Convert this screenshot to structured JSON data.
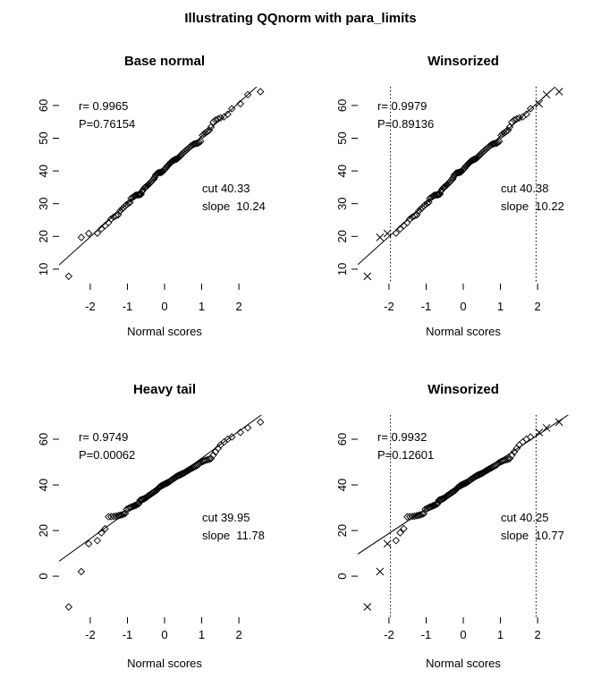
{
  "main_title": "Illustrating QQnorm with para_limits",
  "colors": {
    "foreground": "#000000",
    "background": "#ffffff"
  },
  "chart_data": {
    "type": "scatter",
    "title": "Illustrating QQnorm with para_limits",
    "xlabel": "Normal scores",
    "ylabel": "",
    "grid": false,
    "legend": "none",
    "xticks": [
      -2,
      -1,
      0,
      1,
      2
    ],
    "marker": "open-diamond",
    "winsorized_marker": "x-cross",
    "datasets": {
      "normal": {
        "x": [
          -2.58,
          -2.24,
          -2.04,
          -1.81,
          -1.7,
          -1.6,
          -1.51,
          -1.44,
          -1.37,
          -1.31,
          -1.25,
          -1.2,
          -1.15,
          -1.1,
          -1.06,
          -1.02,
          -0.97,
          -0.93,
          -0.9,
          -0.86,
          -0.82,
          -0.79,
          -0.76,
          -0.72,
          -0.69,
          -0.66,
          -0.63,
          -0.6,
          -0.57,
          -0.54,
          -0.51,
          -0.48,
          -0.45,
          -0.43,
          -0.4,
          -0.37,
          -0.35,
          -0.32,
          -0.29,
          -0.27,
          -0.24,
          -0.21,
          -0.19,
          -0.16,
          -0.14,
          -0.11,
          -0.09,
          -0.06,
          -0.04,
          -0.01,
          0.01,
          0.04,
          0.06,
          0.09,
          0.11,
          0.14,
          0.16,
          0.19,
          0.21,
          0.24,
          0.27,
          0.29,
          0.32,
          0.35,
          0.37,
          0.4,
          0.43,
          0.45,
          0.48,
          0.51,
          0.54,
          0.57,
          0.6,
          0.63,
          0.66,
          0.69,
          0.72,
          0.76,
          0.79,
          0.82,
          0.86,
          0.9,
          0.93,
          0.97,
          1.02,
          1.06,
          1.1,
          1.15,
          1.2,
          1.25,
          1.31,
          1.37,
          1.44,
          1.51,
          1.6,
          1.7,
          1.81,
          2.04,
          2.24,
          2.58
        ],
        "y": [
          7.8,
          19.7,
          20.9,
          21.0,
          22.3,
          23.3,
          24.2,
          25.3,
          25.9,
          26.3,
          26.6,
          27.7,
          28.3,
          28.8,
          29.3,
          29.7,
          30.1,
          30.4,
          31.6,
          31.9,
          32.2,
          32.5,
          32.6,
          32.7,
          32.7,
          32.8,
          32.9,
          33.8,
          34.3,
          34.8,
          35.1,
          35.3,
          35.6,
          35.9,
          36.2,
          36.5,
          36.8,
          37.2,
          37.5,
          38.0,
          38.7,
          39.1,
          39.3,
          39.4,
          39.5,
          39.5,
          39.6,
          39.7,
          39.9,
          40.3,
          40.6,
          40.9,
          41.3,
          41.6,
          41.9,
          42.2,
          42.5,
          42.8,
          43.0,
          43.2,
          43.4,
          43.5,
          43.6,
          43.8,
          44.0,
          44.3,
          44.6,
          45.0,
          45.3,
          45.6,
          45.9,
          46.2,
          46.5,
          46.8,
          47.1,
          47.4,
          47.7,
          48.0,
          48.2,
          48.3,
          48.4,
          48.5,
          48.7,
          49.0,
          50.9,
          51.3,
          51.6,
          52.0,
          52.4,
          53.4,
          54.9,
          55.5,
          55.9,
          56.2,
          56.5,
          57.3,
          59.0,
          60.5,
          63.3,
          64.2
        ]
      },
      "heavy": {
        "x": [
          -2.58,
          -2.24,
          -2.04,
          -1.81,
          -1.7,
          -1.6,
          -1.51,
          -1.44,
          -1.37,
          -1.31,
          -1.25,
          -1.2,
          -1.15,
          -1.1,
          -1.06,
          -1.02,
          -0.97,
          -0.93,
          -0.9,
          -0.86,
          -0.82,
          -0.79,
          -0.76,
          -0.72,
          -0.69,
          -0.66,
          -0.63,
          -0.6,
          -0.57,
          -0.54,
          -0.51,
          -0.48,
          -0.45,
          -0.43,
          -0.4,
          -0.37,
          -0.35,
          -0.32,
          -0.29,
          -0.27,
          -0.24,
          -0.21,
          -0.19,
          -0.16,
          -0.14,
          -0.11,
          -0.09,
          -0.06,
          -0.04,
          -0.01,
          0.01,
          0.04,
          0.06,
          0.09,
          0.11,
          0.14,
          0.16,
          0.19,
          0.21,
          0.24,
          0.27,
          0.29,
          0.32,
          0.35,
          0.37,
          0.4,
          0.43,
          0.45,
          0.48,
          0.51,
          0.54,
          0.57,
          0.6,
          0.63,
          0.66,
          0.69,
          0.72,
          0.76,
          0.79,
          0.82,
          0.86,
          0.9,
          0.93,
          0.97,
          1.02,
          1.06,
          1.1,
          1.15,
          1.2,
          1.25,
          1.31,
          1.37,
          1.44,
          1.51,
          1.6,
          1.7,
          1.81,
          2.04,
          2.24,
          2.58
        ],
        "y": [
          -13.5,
          2.0,
          14.2,
          15.6,
          19.0,
          20.8,
          26.0,
          26.1,
          26.2,
          26.3,
          26.5,
          26.7,
          26.9,
          27.2,
          27.5,
          29.3,
          29.7,
          30.0,
          30.3,
          30.5,
          30.8,
          31.0,
          31.2,
          31.5,
          31.8,
          33.2,
          33.4,
          33.6,
          33.8,
          34.0,
          34.3,
          34.6,
          35.0,
          35.3,
          35.6,
          35.9,
          36.2,
          36.5,
          36.8,
          37.1,
          37.4,
          37.7,
          38.1,
          38.6,
          39.0,
          39.3,
          39.6,
          39.8,
          40.0,
          40.2,
          40.4,
          40.6,
          40.8,
          41.0,
          41.2,
          41.5,
          41.8,
          42.1,
          42.4,
          42.7,
          43.0,
          43.3,
          43.6,
          43.9,
          44.1,
          44.3,
          44.5,
          44.7,
          44.9,
          45.1,
          45.4,
          45.7,
          46.0,
          46.3,
          46.6,
          46.9,
          47.2,
          47.5,
          47.8,
          48.1,
          48.4,
          48.8,
          49.3,
          49.8,
          50.2,
          50.5,
          50.8,
          51.0,
          51.2,
          51.5,
          53.0,
          54.5,
          56.0,
          57.5,
          58.8,
          60.0,
          61.0,
          63.0,
          65.0,
          67.5
        ]
      }
    },
    "panels": [
      {
        "id": "base-normal",
        "title": "Base normal",
        "dataset": "normal",
        "r_text": "r= 0.9965",
        "p_text": "P=0.76154",
        "cut_text": "cut 40.33",
        "slope_text": "slope  10.24",
        "line": {
          "intercept": 40.33,
          "slope": 10.24
        },
        "xlim": [
          -2.84,
          2.84
        ],
        "ylim": [
          5.6,
          65.7
        ],
        "yticks": [
          10,
          20,
          30,
          40,
          50,
          60
        ],
        "vlines": [],
        "cross_indices": []
      },
      {
        "id": "winsorized-normal",
        "title": "Winsorized",
        "dataset": "normal",
        "r_text": "r= 0.9979",
        "p_text": "P=0.89136",
        "cut_text": "cut 40.38",
        "slope_text": "slope  10.22",
        "line": {
          "intercept": 40.38,
          "slope": 10.22
        },
        "xlim": [
          -2.84,
          2.84
        ],
        "ylim": [
          5.6,
          65.7
        ],
        "yticks": [
          10,
          20,
          30,
          40,
          50,
          60
        ],
        "vlines": [
          -1.96,
          1.96
        ],
        "cross_indices": [
          0,
          1,
          2,
          97,
          98,
          99
        ]
      },
      {
        "id": "heavy-tail",
        "title": "Heavy tail",
        "dataset": "heavy",
        "r_text": "r= 0.9749",
        "p_text": "P=0.00062",
        "cut_text": "cut 39.95",
        "slope_text": "slope  11.78",
        "line": {
          "intercept": 39.95,
          "slope": 11.78
        },
        "xlim": [
          -2.84,
          2.84
        ],
        "ylim": [
          -18.0,
          70.6
        ],
        "yticks": [
          0,
          20,
          40,
          60
        ],
        "vlines": [],
        "cross_indices": []
      },
      {
        "id": "winsorized-heavy",
        "title": "Winsorized",
        "dataset": "heavy",
        "r_text": "r= 0.9932",
        "p_text": "P=0.12601",
        "cut_text": "cut 40.25",
        "slope_text": "slope  10.77",
        "line": {
          "intercept": 40.25,
          "slope": 10.77
        },
        "xlim": [
          -2.84,
          2.84
        ],
        "ylim": [
          -18.0,
          70.6
        ],
        "yticks": [
          0,
          20,
          40,
          60
        ],
        "vlines": [
          -1.96,
          1.96
        ],
        "cross_indices": [
          0,
          1,
          2,
          97,
          98,
          99
        ]
      }
    ]
  }
}
